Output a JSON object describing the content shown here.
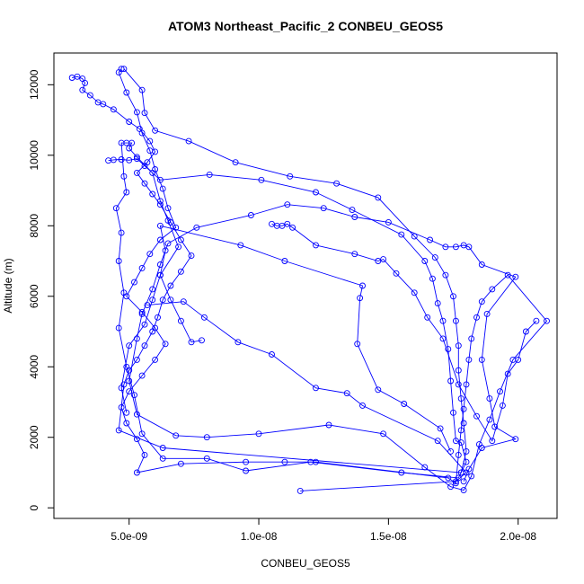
{
  "chart_data": {
    "type": "line",
    "title": "ATOM3 Northeast_Pacific_2 CONBEU_GEOS5",
    "xlabel": "CONBEU_GEOS5",
    "ylabel": "Altitude (m)",
    "x_ticks": [
      5e-09,
      1e-08,
      1.5e-08,
      2e-08
    ],
    "x_tick_labels": [
      "5.0e-09",
      "1.0e-08",
      "1.5e-08",
      "2.0e-08"
    ],
    "y_ticks": [
      0,
      2000,
      4000,
      6000,
      8000,
      10000,
      12000
    ],
    "y_tick_labels": [
      "0",
      "2000",
      "4000",
      "6000",
      "8000",
      "10000",
      "12000"
    ],
    "xlim": [
      2.1e-09,
      2.15e-08
    ],
    "ylim": [
      -300,
      12900
    ],
    "grid": false,
    "series": [
      {
        "color": "#0000ff",
        "marker": "open-circle",
        "points": [
          [
            4.7e-09,
            12450
          ],
          [
            4.6e-09,
            12350
          ],
          [
            4.9e-09,
            11780
          ],
          [
            5.3e-09,
            11220
          ],
          [
            5.5e-09,
            10630
          ],
          [
            5.8e-09,
            10130
          ],
          [
            6e-09,
            9600
          ],
          [
            6.3e-09,
            9050
          ],
          [
            6.5e-09,
            8500
          ],
          [
            6.8e-09,
            7950
          ],
          [
            6.2e-09,
            7600
          ],
          [
            5.8e-09,
            7200
          ],
          [
            5.5e-09,
            6800
          ],
          [
            5.2e-09,
            6400
          ],
          [
            4.9e-09,
            6000
          ],
          [
            5.5e-09,
            5550
          ],
          [
            6e-09,
            5100
          ],
          [
            6.4e-09,
            4650
          ],
          [
            6e-09,
            4200
          ],
          [
            5.5e-09,
            3750
          ],
          [
            5e-09,
            3300
          ],
          [
            4.7e-09,
            2850
          ],
          [
            4.9e-09,
            2400
          ],
          [
            5.3e-09,
            1950
          ],
          [
            5.6e-09,
            1500
          ],
          [
            5.3e-09,
            1000
          ],
          [
            7e-09,
            1250
          ],
          [
            9.5e-09,
            1300
          ],
          [
            1.1e-08,
            1300
          ],
          [
            1.22e-08,
            1300
          ],
          [
            1.73e-08,
            850
          ],
          [
            1.76e-08,
            700
          ],
          [
            1.77e-08,
            1500
          ],
          [
            1.78e-08,
            2200
          ],
          [
            1.79e-08,
            2800
          ],
          [
            1.8e-08,
            3500
          ],
          [
            1.81e-08,
            4200
          ],
          [
            1.82e-08,
            4800
          ],
          [
            1.84e-08,
            5400
          ],
          [
            1.86e-08,
            5850
          ],
          [
            1.9e-08,
            6200
          ],
          [
            1.96e-08,
            6600
          ],
          [
            2.11e-08,
            5300
          ],
          [
            1.98e-08,
            4200
          ],
          [
            1.93e-08,
            3300
          ],
          [
            1.89e-08,
            2500
          ],
          [
            1.85e-08,
            1800
          ],
          [
            1.82e-08,
            900
          ],
          [
            1.79e-08,
            500
          ],
          [
            1.74e-08,
            600
          ],
          [
            1.64e-08,
            1150
          ],
          [
            1.48e-08,
            2100
          ],
          [
            1.27e-08,
            2350
          ],
          [
            1e-08,
            2100
          ],
          [
            8e-09,
            2000
          ],
          [
            6.8e-09,
            2050
          ],
          [
            5.3e-09,
            2650
          ],
          [
            5e-09,
            3600
          ],
          [
            5.3e-09,
            4800
          ],
          [
            5.5e-09,
            5500
          ],
          [
            5.9e-09,
            6200
          ],
          [
            6.2e-09,
            6900
          ],
          [
            6.5e-09,
            7500
          ],
          [
            7.6e-09,
            7950
          ],
          [
            9.7e-09,
            8300
          ],
          [
            1.11e-08,
            8600
          ],
          [
            1.25e-08,
            8500
          ],
          [
            1.37e-08,
            8250
          ],
          [
            1.5e-08,
            8100
          ],
          [
            1.66e-08,
            7600
          ],
          [
            1.72e-08,
            7400
          ],
          [
            1.76e-08,
            7400
          ],
          [
            1.79e-08,
            7450
          ],
          [
            1.81e-08,
            7400
          ],
          [
            1.86e-08,
            6900
          ],
          [
            1.99e-08,
            6550
          ],
          [
            1.88e-08,
            5500
          ],
          [
            1.86e-08,
            4200
          ],
          [
            1.89e-08,
            3100
          ],
          [
            1.91e-08,
            2300
          ],
          [
            1.99e-08,
            1950
          ],
          [
            1.86e-08,
            1700
          ],
          [
            1.81e-08,
            1100
          ],
          [
            1.79e-08,
            750
          ]
        ]
      },
      {
        "color": "#0000ff",
        "marker": "open-circle",
        "points": [
          [
            2.8e-09,
            12200
          ],
          [
            3e-09,
            12230
          ],
          [
            3.2e-09,
            12170
          ],
          [
            3.3e-09,
            12050
          ],
          [
            3.2e-09,
            11850
          ],
          [
            3.5e-09,
            11700
          ],
          [
            3.8e-09,
            11500
          ],
          [
            4e-09,
            11450
          ],
          [
            4.4e-09,
            11300
          ],
          [
            5e-09,
            10950
          ],
          [
            5.4e-09,
            10750
          ],
          [
            5.8e-09,
            10400
          ],
          [
            6e-09,
            10100
          ],
          [
            5.7e-09,
            9800
          ],
          [
            5.3e-09,
            9500
          ],
          [
            5.6e-09,
            9200
          ],
          [
            5.9e-09,
            8900
          ],
          [
            6.2e-09,
            8600
          ],
          [
            6.6e-09,
            8100
          ],
          [
            7e-09,
            7600
          ],
          [
            7.4e-09,
            7150
          ],
          [
            7e-09,
            6700
          ],
          [
            6.6e-09,
            6300
          ],
          [
            6.3e-09,
            5900
          ],
          [
            6.1e-09,
            5400
          ],
          [
            5.9e-09,
            5000
          ],
          [
            5.6e-09,
            4600
          ],
          [
            5.3e-09,
            4200
          ],
          [
            5e-09,
            3900
          ],
          [
            4.8e-09,
            3500
          ],
          [
            4.6e-09,
            2200
          ],
          [
            6.3e-09,
            1700
          ],
          [
            1.78e-08,
            1000
          ],
          [
            1.8e-08,
            1600
          ],
          [
            1.79e-08,
            2400
          ],
          [
            1.78e-08,
            3100
          ],
          [
            1.77e-08,
            3900
          ],
          [
            1.77e-08,
            4600
          ],
          [
            1.76e-08,
            5300
          ],
          [
            1.75e-08,
            6000
          ],
          [
            1.72e-08,
            6600
          ],
          [
            1.68e-08,
            7100
          ],
          [
            1.6e-08,
            7700
          ],
          [
            1.46e-08,
            8800
          ],
          [
            1.3e-08,
            9200
          ],
          [
            1.12e-08,
            9400
          ],
          [
            9.1e-09,
            9800
          ],
          [
            7.3e-09,
            10400
          ],
          [
            6e-09,
            10700
          ],
          [
            5.6e-09,
            11200
          ],
          [
            5.5e-09,
            11850
          ],
          [
            4.8e-09,
            12450
          ]
        ]
      },
      {
        "color": "#0000ff",
        "marker": "open-circle",
        "points": [
          [
            4.2e-09,
            9850
          ],
          [
            4.4e-09,
            9870
          ],
          [
            4.7e-09,
            9880
          ],
          [
            5e-09,
            9860
          ],
          [
            5.3e-09,
            9900
          ],
          [
            5.6e-09,
            9700
          ],
          [
            6.2e-09,
            9300
          ],
          [
            8.1e-09,
            9450
          ],
          [
            1.01e-08,
            9300
          ],
          [
            1.22e-08,
            8950
          ],
          [
            1.36e-08,
            8450
          ],
          [
            1.55e-08,
            7750
          ],
          [
            1.64e-08,
            7000
          ],
          [
            1.67e-08,
            6500
          ],
          [
            1.69e-08,
            5800
          ],
          [
            1.71e-08,
            5300
          ],
          [
            1.73e-08,
            4500
          ],
          [
            1.74e-08,
            3600
          ],
          [
            1.75e-08,
            2700
          ],
          [
            1.76e-08,
            1900
          ],
          [
            1.78e-08,
            1850
          ],
          [
            1.8e-08,
            1300
          ],
          [
            1.77e-08,
            850
          ],
          [
            1.55e-08,
            1000
          ],
          [
            1.2e-08,
            1300
          ],
          [
            9.5e-09,
            1050
          ],
          [
            8e-09,
            1400
          ],
          [
            6.3e-09,
            1400
          ],
          [
            5.5e-09,
            2100
          ],
          [
            5.2e-09,
            3200
          ],
          [
            4.9e-09,
            4000
          ],
          [
            4.6e-09,
            5100
          ],
          [
            4.8e-09,
            6100
          ],
          [
            4.6e-09,
            7000
          ],
          [
            4.7e-09,
            7800
          ],
          [
            4.5e-09,
            8500
          ],
          [
            4.9e-09,
            8950
          ],
          [
            4.8e-09,
            9400
          ],
          [
            4.7e-09,
            10350
          ],
          [
            4.9e-09,
            10350
          ],
          [
            5.1e-09,
            10350
          ],
          [
            5e-09,
            10200
          ],
          [
            5.3e-09,
            9950
          ],
          [
            5.9e-09,
            9500
          ],
          [
            6.2e-09,
            8700
          ],
          [
            6.5e-09,
            8150
          ],
          [
            6.9e-09,
            7400
          ],
          [
            6.2e-09,
            6600
          ],
          [
            5.9e-09,
            5900
          ],
          [
            5.6e-09,
            5200
          ],
          [
            5e-09,
            4600
          ],
          [
            4.7e-09,
            3400
          ],
          [
            4.9e-09,
            2700
          ]
        ]
      },
      {
        "color": "#0000ff",
        "marker": "open-circle",
        "points": [
          [
            7.8e-09,
            4750
          ],
          [
            7.4e-09,
            4700
          ],
          [
            7e-09,
            5300
          ],
          [
            6.6e-09,
            5900
          ],
          [
            6.2e-09,
            6600
          ],
          [
            6.4e-09,
            7300
          ],
          [
            6.2e-09,
            8000
          ],
          [
            9.3e-09,
            7450
          ],
          [
            1.1e-08,
            7000
          ],
          [
            1.4e-08,
            6300
          ],
          [
            1.39e-08,
            5950
          ],
          [
            1.38e-08,
            4650
          ],
          [
            1.46e-08,
            3350
          ],
          [
            1.56e-08,
            2950
          ],
          [
            1.7e-08,
            2250
          ],
          [
            1.74e-08,
            1600
          ]
        ]
      },
      {
        "color": "#0000ff",
        "marker": "open-circle",
        "points": [
          [
            5.7e-09,
            5750
          ],
          [
            7.1e-09,
            5850
          ],
          [
            7.9e-09,
            5400
          ],
          [
            9.2e-09,
            4700
          ],
          [
            1.05e-08,
            4350
          ],
          [
            1.22e-08,
            3400
          ],
          [
            1.34e-08,
            3250
          ],
          [
            1.4e-08,
            2900
          ],
          [
            1.69e-08,
            1900
          ],
          [
            1.8e-08,
            1000
          ],
          [
            1.76e-08,
            750
          ],
          [
            1.16e-08,
            480
          ]
        ]
      },
      {
        "color": "#0000ff",
        "marker": "open-circle",
        "points": [
          [
            1.05e-08,
            8050
          ],
          [
            1.07e-08,
            8000
          ],
          [
            1.09e-08,
            8000
          ],
          [
            1.11e-08,
            8050
          ],
          [
            1.13e-08,
            7950
          ],
          [
            1.22e-08,
            7450
          ],
          [
            1.37e-08,
            7200
          ],
          [
            1.46e-08,
            7000
          ],
          [
            1.48e-08,
            7050
          ],
          [
            1.53e-08,
            6650
          ],
          [
            1.6e-08,
            6100
          ],
          [
            1.65e-08,
            5400
          ],
          [
            1.71e-08,
            4800
          ],
          [
            1.77e-08,
            3500
          ],
          [
            1.84e-08,
            2600
          ],
          [
            1.9e-08,
            1900
          ],
          [
            1.94e-08,
            2900
          ],
          [
            1.96e-08,
            3800
          ],
          [
            2e-08,
            4200
          ],
          [
            2.03e-08,
            5000
          ],
          [
            2.07e-08,
            5300
          ]
        ]
      }
    ]
  }
}
